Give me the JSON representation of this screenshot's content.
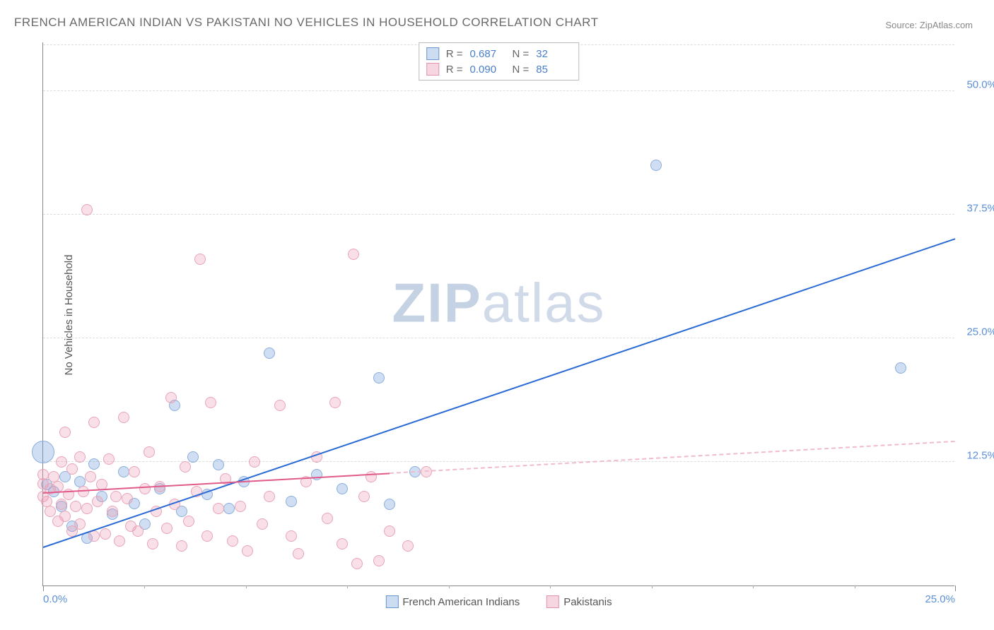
{
  "title": "FRENCH AMERICAN INDIAN VS PAKISTANI NO VEHICLES IN HOUSEHOLD CORRELATION CHART",
  "source_label": "Source: ZipAtlas.com",
  "y_axis_label": "No Vehicles in Household",
  "watermark": {
    "bold": "ZIP",
    "light": "atlas"
  },
  "chart": {
    "type": "scatter",
    "background_color": "#ffffff",
    "grid_color": "#dddddd",
    "axis_color": "#888888",
    "xlim": [
      0,
      25
    ],
    "ylim": [
      0,
      55
    ],
    "yticks": [
      12.5,
      25.0,
      37.5,
      50.0
    ],
    "ytick_labels": [
      "12.5%",
      "25.0%",
      "37.5%",
      "50.0%"
    ],
    "xtick_majors": [
      0,
      25
    ],
    "xtick_major_labels": [
      "0.0%",
      "25.0%"
    ],
    "xtick_minor_step": 2.78,
    "series": [
      {
        "name": "French American Indians",
        "color_fill": "rgba(120,160,220,0.35)",
        "color_stroke": "#8aaedb",
        "swatch_fill": "#cdddf1",
        "swatch_border": "#6a95cf",
        "R": "0.687",
        "N": "32",
        "marker_radius": 8,
        "regression": {
          "x1": 0,
          "y1": 3.8,
          "x2": 25,
          "y2": 35,
          "solid_to_x": 25,
          "color": "#2a6ad4",
          "width": 2.5
        },
        "points": [
          [
            0.0,
            13.5,
            16
          ],
          [
            0.1,
            10.2
          ],
          [
            0.3,
            9.5
          ],
          [
            0.5,
            8.0
          ],
          [
            0.6,
            11.0
          ],
          [
            0.8,
            6.0
          ],
          [
            1.0,
            10.5
          ],
          [
            1.2,
            4.8
          ],
          [
            1.4,
            12.3
          ],
          [
            1.6,
            9.0
          ],
          [
            1.9,
            7.2
          ],
          [
            2.2,
            11.5
          ],
          [
            2.5,
            8.3
          ],
          [
            2.8,
            6.2
          ],
          [
            3.2,
            9.8
          ],
          [
            3.6,
            18.2
          ],
          [
            3.8,
            7.5
          ],
          [
            4.1,
            13.0
          ],
          [
            4.5,
            9.2
          ],
          [
            4.8,
            12.2
          ],
          [
            5.1,
            7.8
          ],
          [
            5.5,
            10.5
          ],
          [
            6.2,
            23.5
          ],
          [
            6.8,
            8.5
          ],
          [
            7.5,
            11.2
          ],
          [
            8.2,
            9.8
          ],
          [
            9.2,
            21.0
          ],
          [
            9.5,
            8.2
          ],
          [
            10.2,
            11.5
          ],
          [
            16.8,
            42.5
          ],
          [
            23.5,
            22.0
          ]
        ]
      },
      {
        "name": "Pakistanis",
        "color_fill": "rgba(235,150,175,0.30)",
        "color_stroke": "#e8a4b8",
        "swatch_fill": "#f6d6e0",
        "swatch_border": "#e394ab",
        "R": "0.090",
        "N": "85",
        "marker_radius": 8,
        "regression": {
          "x1": 0,
          "y1": 9.3,
          "x2": 25,
          "y2": 14.5,
          "solid_to_x": 9.5,
          "color": "#e05a8a",
          "width": 2,
          "dash_color": "#f0bccb"
        },
        "points": [
          [
            0.0,
            9.0
          ],
          [
            0.0,
            10.3
          ],
          [
            0.0,
            11.2
          ],
          [
            0.1,
            8.5
          ],
          [
            0.2,
            9.8
          ],
          [
            0.2,
            7.5
          ],
          [
            0.3,
            11.0
          ],
          [
            0.4,
            6.5
          ],
          [
            0.4,
            10.0
          ],
          [
            0.5,
            8.2
          ],
          [
            0.5,
            12.5
          ],
          [
            0.6,
            7.0
          ],
          [
            0.6,
            15.5
          ],
          [
            0.7,
            9.2
          ],
          [
            0.8,
            5.5
          ],
          [
            0.8,
            11.8
          ],
          [
            0.9,
            8.0
          ],
          [
            1.0,
            13.0
          ],
          [
            1.0,
            6.2
          ],
          [
            1.1,
            9.5
          ],
          [
            1.2,
            7.8
          ],
          [
            1.2,
            38.0
          ],
          [
            1.3,
            11.0
          ],
          [
            1.4,
            5.0
          ],
          [
            1.4,
            16.5
          ],
          [
            1.5,
            8.5
          ],
          [
            1.6,
            10.2
          ],
          [
            1.7,
            5.2
          ],
          [
            1.8,
            12.8
          ],
          [
            1.9,
            7.5
          ],
          [
            2.0,
            9.0
          ],
          [
            2.1,
            4.5
          ],
          [
            2.2,
            17.0
          ],
          [
            2.3,
            8.8
          ],
          [
            2.4,
            6.0
          ],
          [
            2.5,
            11.5
          ],
          [
            2.6,
            5.5
          ],
          [
            2.8,
            9.8
          ],
          [
            2.9,
            13.5
          ],
          [
            3.0,
            4.2
          ],
          [
            3.1,
            7.5
          ],
          [
            3.2,
            10.0
          ],
          [
            3.4,
            5.8
          ],
          [
            3.5,
            19.0
          ],
          [
            3.6,
            8.2
          ],
          [
            3.8,
            4.0
          ],
          [
            3.9,
            12.0
          ],
          [
            4.0,
            6.5
          ],
          [
            4.2,
            9.5
          ],
          [
            4.3,
            33.0
          ],
          [
            4.5,
            5.0
          ],
          [
            4.6,
            18.5
          ],
          [
            4.8,
            7.8
          ],
          [
            5.0,
            10.8
          ],
          [
            5.2,
            4.5
          ],
          [
            5.4,
            8.0
          ],
          [
            5.6,
            3.5
          ],
          [
            5.8,
            12.5
          ],
          [
            6.0,
            6.2
          ],
          [
            6.2,
            9.0
          ],
          [
            6.5,
            18.2
          ],
          [
            6.8,
            5.0
          ],
          [
            7.0,
            3.2
          ],
          [
            7.2,
            10.5
          ],
          [
            7.5,
            13.0
          ],
          [
            7.8,
            6.8
          ],
          [
            8.0,
            18.5
          ],
          [
            8.2,
            4.2
          ],
          [
            8.5,
            33.5
          ],
          [
            8.6,
            2.2
          ],
          [
            8.8,
            9.0
          ],
          [
            9.0,
            11.0
          ],
          [
            9.2,
            2.5
          ],
          [
            9.5,
            5.5
          ],
          [
            10.0,
            4.0
          ],
          [
            10.5,
            11.5
          ]
        ]
      }
    ]
  },
  "legend_bottom": [
    {
      "label": "French American Indians",
      "swatch_fill": "#cdddf1",
      "swatch_border": "#6a95cf"
    },
    {
      "label": "Pakistanis",
      "swatch_fill": "#f6d6e0",
      "swatch_border": "#e394ab"
    }
  ]
}
